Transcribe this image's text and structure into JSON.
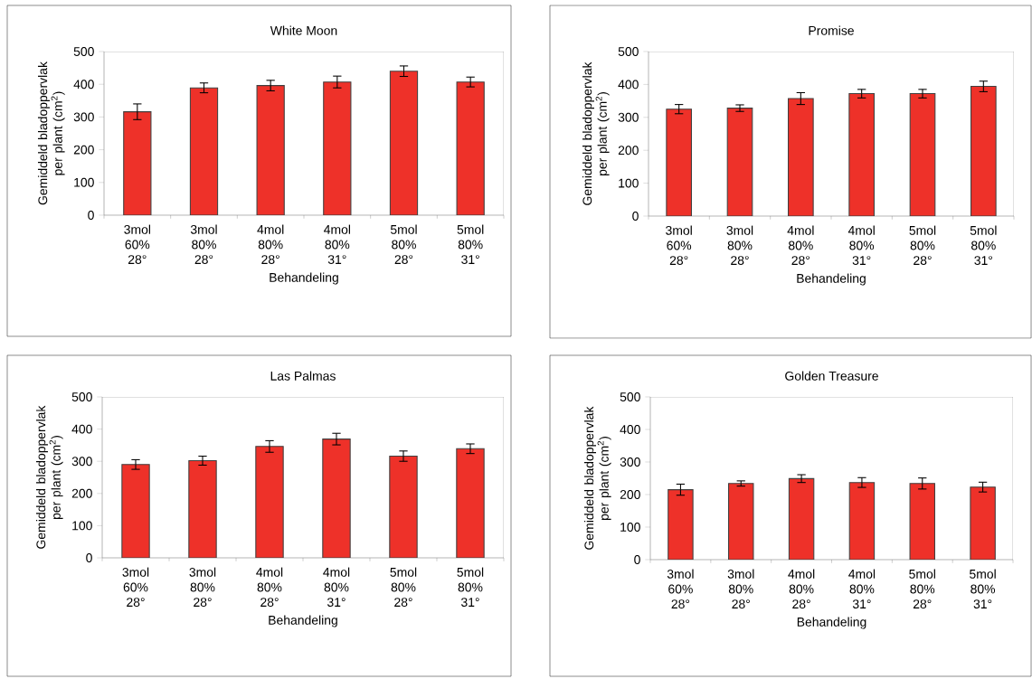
{
  "chart_data": [
    {
      "type": "bar",
      "title": "White Moon",
      "xlabel": "Behandeling",
      "ylabel": "Gemiddeld bladoppervlak per plant (cm$^{2}$)",
      "categories": [
        "3mol 60% 28°",
        "3mol 80% 28°",
        "4mol 80% 28°",
        "4mol 80% 31°",
        "5mol 80% 28°",
        "5mol 80% 31°"
      ],
      "values": [
        316,
        389,
        396,
        407,
        440,
        407
      ],
      "errors": [
        24,
        15,
        16,
        18,
        16,
        15
      ],
      "color": "#ee3129",
      "ylim": [
        0,
        500
      ],
      "yticks": [
        0,
        100,
        200,
        300,
        400,
        500
      ]
    },
    {
      "type": "bar",
      "title": "Promise",
      "xlabel": "Behandeling",
      "ylabel": "Gemiddeld bladoppervlak per plant (cm$^{2}$)",
      "categories": [
        "3mol 60% 28°",
        "3mol 80% 28°",
        "4mol 80% 28°",
        "4mol 80% 31°",
        "5mol 80% 28°",
        "5mol 80% 31°"
      ],
      "values": [
        325,
        328,
        357,
        372,
        372,
        394
      ],
      "errors": [
        14,
        10,
        18,
        13,
        13,
        16
      ],
      "color": "#ee3129",
      "ylim": [
        0,
        500
      ],
      "yticks": [
        0,
        100,
        200,
        300,
        400,
        500
      ]
    },
    {
      "type": "bar",
      "title": "Las Palmas",
      "xlabel": "Behandeling",
      "ylabel": "Gemiddeld bladoppervlak per plant (cm$^{2}$)",
      "categories": [
        "3mol 60% 28°",
        "3mol 80% 28°",
        "4mol 80% 28°",
        "4mol 80% 31°",
        "5mol 80% 28°",
        "5mol 80% 31°"
      ],
      "values": [
        290,
        302,
        346,
        369,
        316,
        339
      ],
      "errors": [
        15,
        14,
        18,
        18,
        16,
        15
      ],
      "color": "#ee3129",
      "ylim": [
        0,
        500
      ],
      "yticks": [
        0,
        100,
        200,
        300,
        400,
        500
      ]
    },
    {
      "type": "bar",
      "title": "Golden Treasure",
      "xlabel": "Behandeling",
      "ylabel": "Gemiddeld bladoppervlak per plant (cm$^{2}$)",
      "categories": [
        "3mol 60% 28°",
        "3mol 80% 28°",
        "4mol 80% 28°",
        "4mol 80% 31°",
        "5mol 80% 28°",
        "5mol 80% 31°"
      ],
      "values": [
        215,
        234,
        249,
        237,
        234,
        223
      ],
      "errors": [
        17,
        8,
        12,
        15,
        17,
        15
      ],
      "color": "#ee3129",
      "ylim": [
        0,
        500
      ],
      "yticks": [
        0,
        100,
        200,
        300,
        400,
        500
      ]
    }
  ]
}
